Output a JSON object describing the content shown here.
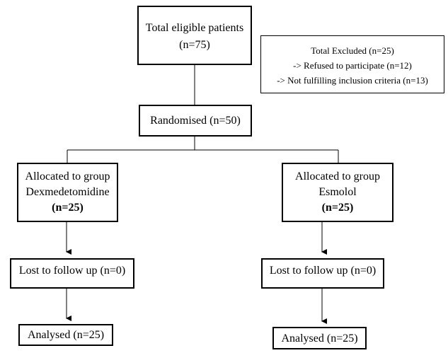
{
  "total": {
    "line1": "Total eligible patients",
    "line2": "(n=75)"
  },
  "excluded": {
    "line1": "Total Excluded (n=25)",
    "line2": "-> Refused to participate (n=12)",
    "line3": "-> Not fulfilling inclusion criteria (n=13)"
  },
  "randomised": {
    "label": "Randomised (n=50)"
  },
  "group_left": {
    "line1": "Allocated to group",
    "line2": "Dexmedetomidine",
    "count": "(n=25)"
  },
  "group_right": {
    "line1": "Allocated to group",
    "line2": "Esmolol",
    "count": "(n=25)"
  },
  "lost_left": {
    "label": "Lost to follow up (n=0)"
  },
  "lost_right": {
    "label": "Lost to follow up (n=0)"
  },
  "analysed_left": {
    "label": "Analysed (n=25)"
  },
  "analysed_right": {
    "label": "Analysed (n=25)"
  }
}
